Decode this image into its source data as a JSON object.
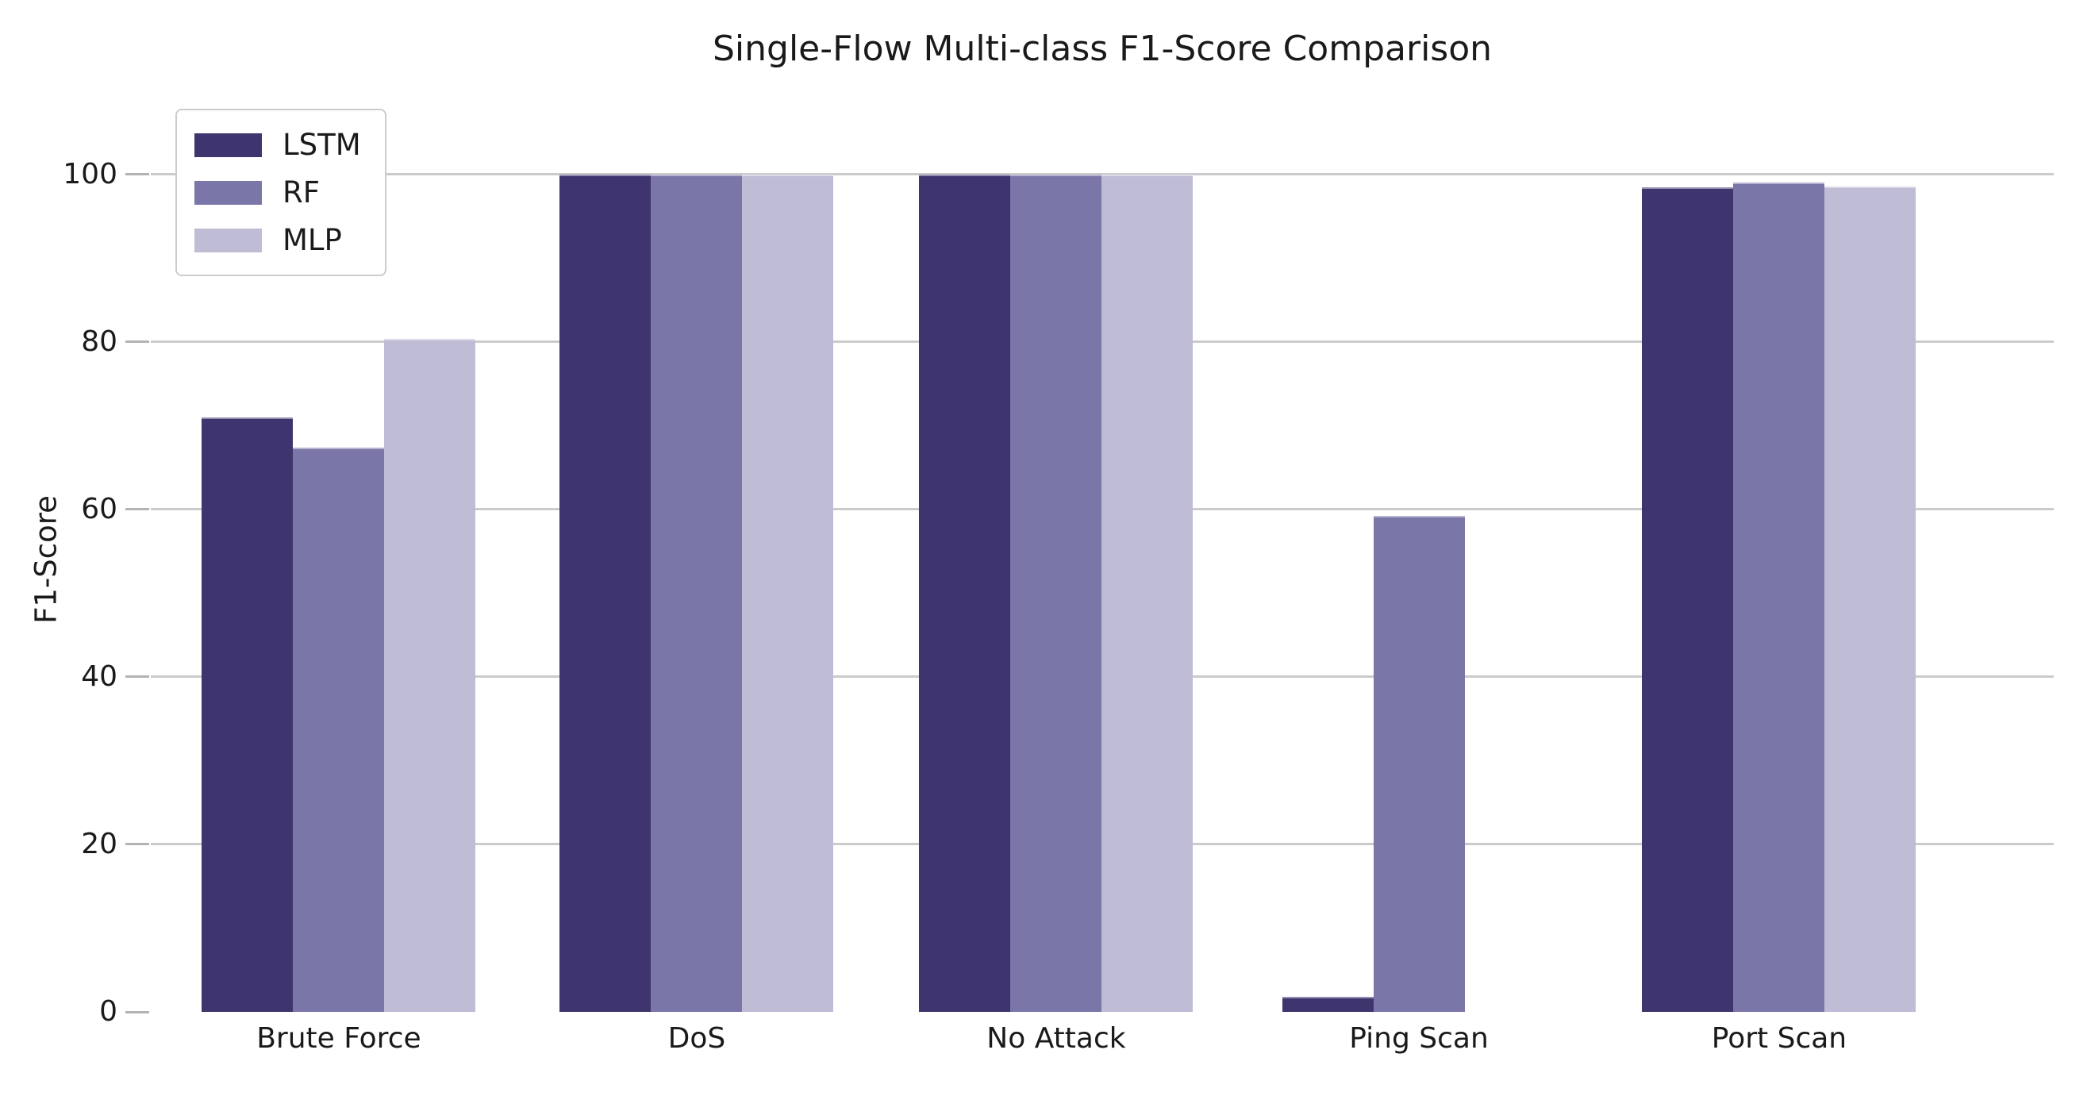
{
  "chart_data": {
    "type": "bar",
    "title": "Single-Flow Multi-class F1-Score Comparison",
    "xlabel": "",
    "ylabel": "F1-Score",
    "categories": [
      "Brute Force",
      "DoS",
      "No Attack",
      "Ping Scan",
      "Port Scan"
    ],
    "series": [
      {
        "name": "LSTM",
        "color": "#3e356e",
        "values": [
          71.0,
          100,
          100,
          1.8,
          98.5
        ]
      },
      {
        "name": "RF",
        "color": "#7b76a8",
        "values": [
          67.4,
          100,
          100,
          59.2,
          99.0
        ]
      },
      {
        "name": "MLP",
        "color": "#bfbcd5",
        "values": [
          80.4,
          100,
          100,
          0,
          98.6
        ]
      }
    ],
    "y_ticks": [
      0,
      20,
      40,
      60,
      80,
      100
    ],
    "ylim": [
      0,
      105
    ],
    "grid": "horizontal-only",
    "legend_position": "upper-left",
    "legend_labels": [
      "LSTM",
      "RF",
      "MLP"
    ]
  },
  "colors": {
    "background": "#ffffff",
    "gridline": "#cbcbcb",
    "tick_mark": "#b3b3b3",
    "text": "#1a1a1a"
  }
}
